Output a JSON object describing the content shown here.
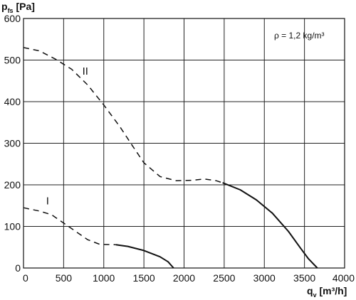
{
  "chart_data": {
    "type": "line",
    "y_axis_label": {
      "main": "p",
      "sub": "fs",
      "unit": " [Pa]"
    },
    "x_axis_label": {
      "main": "q",
      "sub": "v",
      "unit": " [m³/h]"
    },
    "annotation": "ρ = 1,2 kg/m³",
    "xlim": [
      0,
      4000
    ],
    "ylim": [
      0,
      600
    ],
    "x_ticks": [
      0,
      500,
      1000,
      1500,
      2000,
      2500,
      3000,
      3500,
      4000
    ],
    "y_ticks": [
      0,
      100,
      200,
      300,
      400,
      500,
      600
    ],
    "grid": true,
    "series": [
      {
        "name": "I",
        "dashed": [
          [
            0,
            145
          ],
          [
            200,
            137
          ],
          [
            350,
            128
          ],
          [
            500,
            108
          ],
          [
            650,
            88
          ],
          [
            800,
            68
          ],
          [
            950,
            57
          ],
          [
            1150,
            56
          ]
        ],
        "solid": [
          [
            1150,
            56
          ],
          [
            1300,
            52
          ],
          [
            1500,
            42
          ],
          [
            1700,
            27
          ],
          [
            1800,
            15
          ],
          [
            1870,
            0
          ]
        ]
      },
      {
        "name": "II",
        "dashed": [
          [
            0,
            530
          ],
          [
            200,
            522
          ],
          [
            400,
            502
          ],
          [
            600,
            478
          ],
          [
            800,
            440
          ],
          [
            1000,
            392
          ],
          [
            1200,
            340
          ],
          [
            1350,
            296
          ],
          [
            1500,
            253
          ],
          [
            1700,
            220
          ],
          [
            1900,
            210
          ],
          [
            2100,
            211
          ],
          [
            2250,
            214
          ],
          [
            2400,
            210
          ],
          [
            2480,
            205
          ]
        ],
        "solid": [
          [
            2480,
            205
          ],
          [
            2700,
            188
          ],
          [
            2900,
            164
          ],
          [
            3100,
            132
          ],
          [
            3300,
            88
          ],
          [
            3450,
            48
          ],
          [
            3550,
            22
          ],
          [
            3660,
            0
          ]
        ]
      }
    ],
    "series_labels": [
      {
        "text": "I",
        "x": 300,
        "y": 153
      },
      {
        "text": "II",
        "x": 770,
        "y": 465
      }
    ]
  }
}
